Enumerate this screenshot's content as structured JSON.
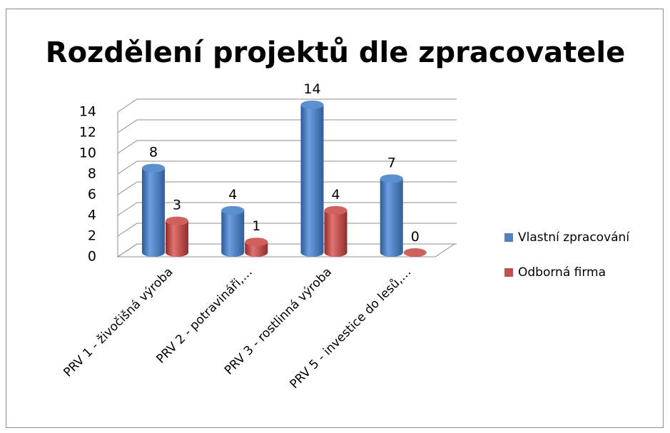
{
  "chart_data": {
    "type": "bar",
    "title": "Rozdělení projektů dle zpracovatele",
    "categories": [
      "PRV 1 - živočišná výroba",
      "PRV 2 - potravináři,…",
      "PRV 3 - rostlinná výroba",
      "PRV 5 - investice do lesů,…"
    ],
    "series": [
      {
        "name": "Vlastní zpracování",
        "color": "#4f81bd",
        "values": [
          8,
          4,
          14,
          7
        ]
      },
      {
        "name": "Odborná firma",
        "color": "#c0504d",
        "values": [
          3,
          1,
          4,
          0
        ]
      }
    ],
    "ylim": [
      0,
      14
    ],
    "yticks": [
      0,
      2,
      4,
      6,
      8,
      10,
      12,
      14
    ],
    "grid": true,
    "legend": "right"
  }
}
